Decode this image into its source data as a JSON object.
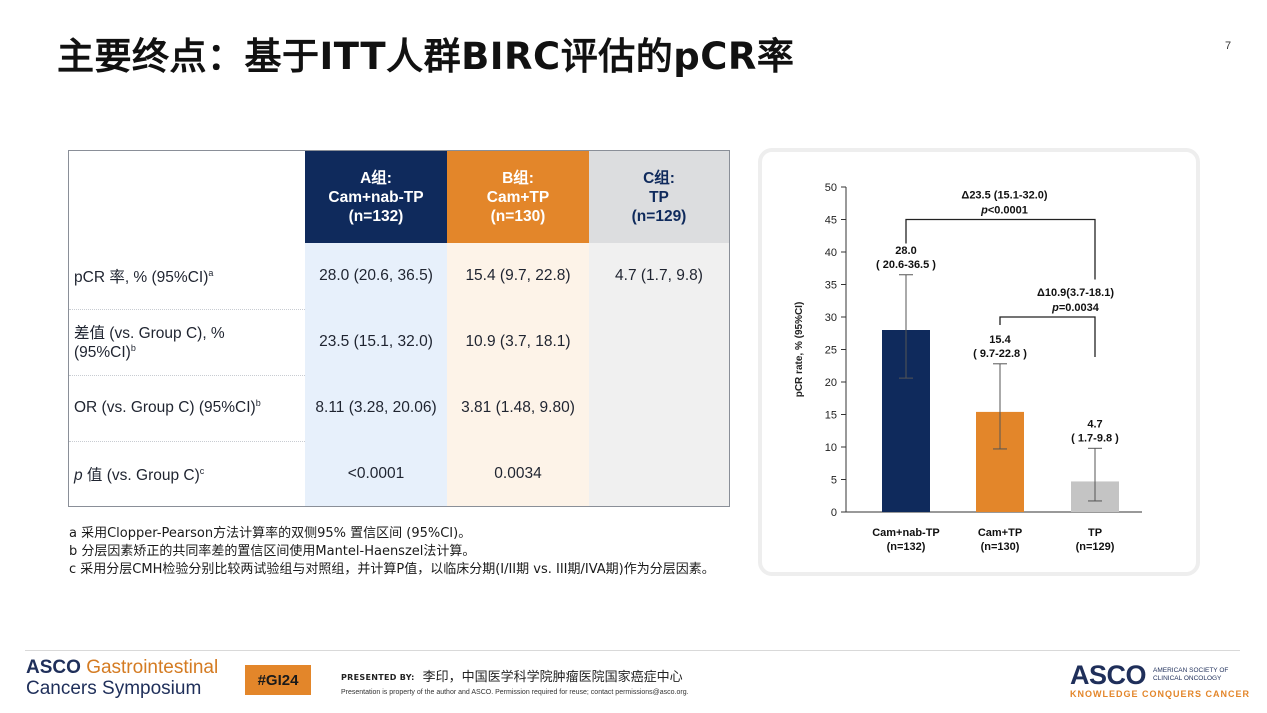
{
  "title": "主要终点：基于ITT人群BIRC评估的pCR率",
  "page_number": "7",
  "table": {
    "header": [
      {
        "line1": "A组:",
        "line2": "Cam+nab-TP",
        "line3": "(n=132)"
      },
      {
        "line1": "B组:",
        "line2": "Cam+TP",
        "line3": "(n=130)"
      },
      {
        "line1": "C组:",
        "line2": "TP",
        "line3": "(n=129)"
      }
    ],
    "rows": [
      {
        "label": "pCR 率, % (95%CI)",
        "sup": "a",
        "a": "28.0 (20.6, 36.5)",
        "b": "15.4 (9.7, 22.8)",
        "c": "4.7 (1.7, 9.8)"
      },
      {
        "label": "差值 (vs. Group C), %",
        "label2": "(95%CI)",
        "sup": "b",
        "a": "23.5 (15.1, 32.0)",
        "b": "10.9 (3.7, 18.1)",
        "c": ""
      },
      {
        "label": "OR (vs. Group C) (95%CI)",
        "sup": "b",
        "a": "8.11 (3.28, 20.06)",
        "b": "3.81 (1.48, 9.80)",
        "c": ""
      },
      {
        "label_italic": "p",
        "label": " 值 (vs. Group C)",
        "sup": "c",
        "a": "<0.0001",
        "b": "0.0034",
        "c": ""
      }
    ]
  },
  "footnotes": [
    "a 采用Clopper-Pearson方法计算率的双侧95% 置信区间 (95%CI)。",
    "b 分层因素矫正的共同率差的置信区间使用Mantel-Haenszel法计算。",
    "c 采用分层CMH检验分别比较两试验组与对照组，并计算P值，以临床分期(I/II期 vs. III期/IVA期)作为分层因素。"
  ],
  "chart_data": {
    "type": "bar",
    "ylabel": "pCR rate, % (95%CI)",
    "ylim": [
      0,
      50
    ],
    "yticks": [
      0,
      5,
      10,
      15,
      20,
      25,
      30,
      35,
      40,
      45,
      50
    ],
    "categories": [
      {
        "line1": "Cam+nab-TP",
        "line2": "(n=132)"
      },
      {
        "line1": "Cam+TP",
        "line2": "(n=130)"
      },
      {
        "line1": "TP",
        "line2": "(n=129)"
      }
    ],
    "values": [
      28.0,
      15.4,
      4.7
    ],
    "ci": [
      [
        20.6,
        36.5
      ],
      [
        9.7,
        22.8
      ],
      [
        1.7,
        9.8
      ]
    ],
    "value_labels": [
      "28.0",
      "15.4",
      "4.7"
    ],
    "ci_labels": [
      "( 20.6-36.5 )",
      "( 9.7-22.8 )",
      "( 1.7-9.8 )"
    ],
    "colors": [
      "#0f2a5c",
      "#e3862a",
      "#c4c4c4"
    ],
    "comparisons": [
      {
        "from": 0,
        "to": 2,
        "level": 45,
        "label1": "Δ23.5 (15.1-32.0)",
        "label2_italic": "p",
        "label2": "<0.0001"
      },
      {
        "from": 1,
        "to": 2,
        "level": 30,
        "label1": "Δ10.9(3.7-18.1)",
        "label2_italic": "p",
        "label2": "=0.0034"
      }
    ]
  },
  "footer": {
    "asco_gi_line1_a": "ASCO",
    "asco_gi_line1_b": "Gastrointestinal",
    "asco_gi_line2": "Cancers Symposium",
    "hashtag": "#GI24",
    "presented_by_label": "PRESENTED BY:",
    "presenter": "李印，中国医学科学院肿瘤医院国家癌症中心",
    "property_note": "Presentation is property of the author and ASCO. Permission required for reuse; contact permissions@asco.org.",
    "asco": "ASCO",
    "asco_sub1": "AMERICAN SOCIETY OF",
    "asco_sub2": "CLINICAL ONCOLOGY",
    "asco_tagline": "KNOWLEDGE CONQUERS CANCER"
  }
}
